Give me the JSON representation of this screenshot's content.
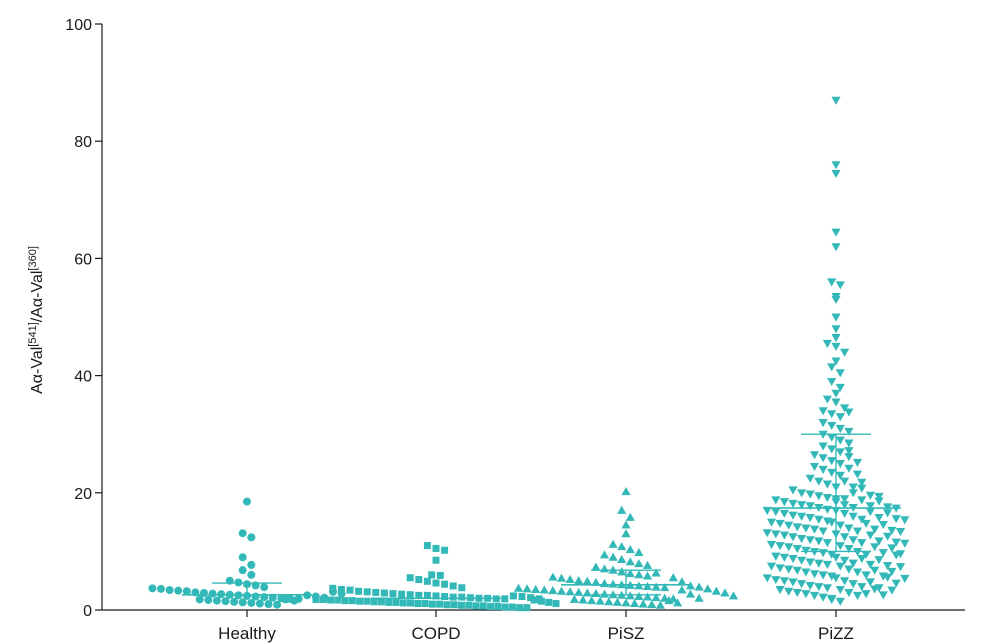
{
  "chart_data": {
    "type": "scatter",
    "subtype": "dot-plot",
    "color": "#33b8b8",
    "ylabel": {
      "parts": [
        {
          "t": "A"
        },
        {
          "t": "α"
        },
        {
          "t": "-Val"
        },
        {
          "t": "[541]",
          "sup": true
        },
        {
          "t": "/A"
        },
        {
          "t": "α"
        },
        {
          "t": "-Val"
        },
        {
          "t": "[360]",
          "sup": true
        }
      ]
    },
    "ylim": [
      0,
      100
    ],
    "yticks": [
      "0",
      "20",
      "40",
      "60",
      "80",
      "100"
    ],
    "categories": [
      "Healthy",
      "COPD",
      "PiSZ",
      "PiZZ"
    ],
    "groups": [
      {
        "category": "Healthy",
        "marker": "circle",
        "median": 2.6,
        "q1": null,
        "q3": 4.6,
        "values": [
          18.5,
          13.1,
          12.4,
          9.0,
          7.7,
          6.8,
          6.0,
          5.0,
          4.7,
          4.4,
          4.2,
          3.9,
          3.7,
          3.6,
          3.4,
          3.3,
          3.2,
          3.0,
          2.9,
          2.8,
          2.7,
          2.6,
          2.5,
          2.4,
          2.3,
          2.2,
          2.1,
          2.0,
          1.9,
          1.9,
          1.8,
          1.7,
          1.6,
          1.5,
          1.4,
          1.3,
          1.2,
          1.1,
          1.0,
          0.9,
          2.5,
          2.3,
          2.1,
          1.8,
          1.6,
          3.1,
          2.8
        ]
      },
      {
        "category": "COPD",
        "marker": "square",
        "median": 2.0,
        "q1": null,
        "q3": null,
        "values": [
          11.0,
          10.5,
          10.2,
          8.5,
          6.0,
          5.9,
          5.5,
          5.2,
          4.9,
          4.6,
          4.4,
          4.1,
          3.8,
          3.7,
          3.5,
          3.4,
          3.2,
          3.1,
          3.0,
          2.9,
          2.8,
          2.7,
          2.6,
          2.5,
          2.5,
          2.4,
          2.3,
          2.2,
          2.2,
          2.1,
          2.0,
          2.0,
          1.9,
          1.9,
          1.8,
          1.8,
          1.7,
          1.7,
          1.6,
          1.6,
          1.5,
          1.5,
          1.4,
          1.4,
          1.3,
          1.3,
          1.2,
          1.2,
          1.1,
          1.1,
          1.0,
          1.0,
          0.9,
          0.9,
          0.8,
          0.8,
          0.7,
          0.7,
          0.6,
          0.6,
          0.5,
          0.5,
          0.4,
          0.4,
          2.4,
          2.3,
          2.1,
          1.9,
          1.7,
          1.5,
          1.3,
          1.1
        ]
      },
      {
        "category": "PiSZ",
        "marker": "triangle-up",
        "median": 4.3,
        "q1": 2.6,
        "q3": 6.8,
        "values": [
          20.2,
          17.0,
          15.8,
          14.5,
          13.0,
          11.2,
          10.8,
          10.3,
          9.8,
          9.4,
          9.0,
          8.6,
          8.2,
          7.9,
          7.6,
          7.3,
          7.0,
          6.8,
          6.5,
          6.2,
          6.0,
          5.8,
          5.6,
          5.4,
          5.2,
          5.0,
          4.9,
          4.7,
          4.5,
          4.4,
          4.3,
          4.2,
          4.1,
          4.0,
          3.9,
          3.8,
          3.7,
          3.6,
          3.5,
          3.4,
          3.3,
          3.2,
          3.1,
          3.0,
          2.9,
          2.8,
          2.7,
          2.6,
          2.5,
          2.4,
          2.3,
          2.2,
          2.1,
          2.0,
          1.9,
          1.8,
          1.7,
          1.6,
          1.5,
          1.4,
          1.3,
          1.2,
          1.1,
          1.0,
          0.9,
          0.8,
          6.3,
          5.5,
          4.8,
          4.1,
          3.4,
          2.7,
          2.0,
          1.6,
          1.2,
          3.9,
          3.6,
          3.2,
          2.9,
          2.4
        ]
      },
      {
        "category": "PiZZ",
        "marker": "triangle-down",
        "median": 17.4,
        "q1": 10.0,
        "q3": 30.0,
        "values": [
          87.0,
          76.0,
          74.5,
          64.5,
          62.0,
          56.0,
          55.5,
          53.5,
          53.0,
          50.0,
          48.0,
          46.5,
          45.5,
          45.0,
          44.0,
          42.5,
          41.5,
          40.5,
          39.0,
          38.0,
          37.0,
          36.0,
          35.5,
          34.0,
          33.5,
          33.0,
          32.0,
          31.5,
          31.0,
          30.5,
          30.0,
          29.5,
          29.0,
          28.5,
          28.0,
          27.5,
          27.0,
          26.5,
          26.0,
          25.5,
          25.0,
          24.5,
          24.0,
          23.5,
          23.0,
          22.5,
          22.0,
          21.5,
          21.0,
          20.5,
          20.0,
          19.8,
          19.5,
          19.2,
          19.0,
          18.8,
          18.5,
          18.2,
          18.0,
          17.8,
          17.5,
          17.2,
          17.0,
          16.8,
          16.5,
          16.2,
          16.0,
          15.8,
          15.5,
          15.2,
          15.0,
          14.8,
          14.5,
          14.2,
          14.0,
          13.8,
          13.5,
          13.2,
          13.0,
          12.8,
          12.5,
          12.2,
          12.0,
          11.8,
          11.5,
          11.2,
          11.0,
          10.8,
          10.5,
          10.2,
          10.0,
          9.8,
          9.5,
          9.2,
          9.0,
          8.8,
          8.5,
          8.2,
          8.0,
          7.8,
          7.5,
          7.2,
          7.0,
          6.8,
          6.5,
          6.2,
          6.0,
          5.8,
          5.5,
          5.2,
          5.0,
          4.8,
          4.5,
          4.2,
          4.0,
          3.8,
          3.5,
          3.2,
          3.0,
          2.8,
          2.5,
          2.2,
          2.0,
          1.8,
          1.5,
          19.0,
          18.5,
          18.0,
          17.5,
          17.0,
          16.5,
          16.0,
          15.5,
          15.0,
          14.5,
          14.0,
          13.5,
          13.0,
          12.5,
          12.0,
          11.5,
          11.0,
          10.5,
          10.0,
          9.5,
          9.0,
          8.5,
          8.0,
          7.5,
          7.0,
          6.5,
          6.0,
          5.5,
          5.0,
          4.5,
          4.0,
          3.5,
          3.0,
          2.5,
          22.0,
          21.0,
          20.0,
          18.8,
          17.8,
          16.8,
          15.8,
          14.8,
          13.8,
          12.8,
          11.8,
          10.8,
          9.8,
          8.8,
          7.8,
          6.8,
          5.8,
          4.8,
          3.8,
          2.8,
          34.5,
          33.8,
          27.2,
          26.2,
          25.2,
          24.2,
          23.2,
          21.8,
          20.8,
          19.6,
          18.6,
          17.6,
          16.6,
          15.6,
          14.6,
          13.6,
          12.6,
          11.6,
          10.6,
          9.6,
          8.6,
          7.6,
          6.6,
          5.6,
          4.6,
          3.6,
          2.6,
          19.4,
          17.4,
          15.4,
          13.4,
          11.4,
          9.4,
          7.4,
          5.4,
          3.4
        ]
      }
    ]
  }
}
